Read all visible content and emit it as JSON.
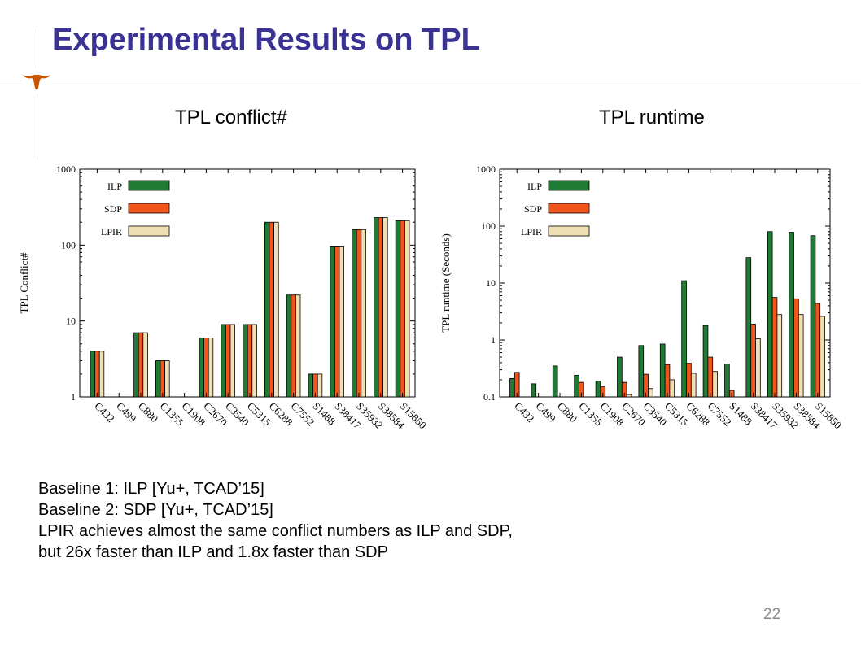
{
  "slide": {
    "title": "Experimental Results on TPL",
    "page_number": "22",
    "subtitles": [
      "TPL conflict#",
      "TPL runtime"
    ],
    "notes": [
      "Baseline 1: ILP [Yu+, TCAD’15]",
      "Baseline 2: SDP [Yu+, TCAD’15]",
      "LPIR achieves almost the same conflict numbers as ILP and SDP,",
      "but 26x faster than ILP and 1.8x faster than SDP"
    ],
    "colors": {
      "title": "#3b3394",
      "logo": "#cc5500"
    }
  },
  "chart_data": [
    {
      "type": "bar",
      "title": "",
      "xlabel": "",
      "ylabel": "TPL Conflict#",
      "yscale": "log",
      "ylim": [
        1,
        1000
      ],
      "yticks": [
        "1",
        "10",
        "100",
        "1000"
      ],
      "legend_position": "top-left",
      "categories": [
        "C432",
        "C499",
        "C880",
        "C1355",
        "C1908",
        "C2670",
        "C3540",
        "C5315",
        "C6288",
        "C7552",
        "S1488",
        "S38417",
        "S35932",
        "S38584",
        "S15850"
      ],
      "series": [
        {
          "name": "ILP",
          "color": "#1f7a33",
          "values": [
            4,
            0,
            7,
            3,
            0,
            6,
            9,
            9,
            200,
            22,
            2,
            95,
            160,
            230,
            210
          ]
        },
        {
          "name": "SDP",
          "color": "#f0561c",
          "values": [
            4,
            0,
            7,
            3,
            0,
            6,
            9,
            9,
            200,
            22,
            2,
            95,
            160,
            230,
            210
          ]
        },
        {
          "name": "LPIR",
          "color": "#f0deb4",
          "values": [
            4,
            0,
            7,
            3,
            0,
            6,
            9,
            9,
            200,
            22,
            2,
            95,
            160,
            230,
            210
          ]
        }
      ]
    },
    {
      "type": "bar",
      "title": "",
      "xlabel": "",
      "ylabel": "TPL runtime (Seconds)",
      "yscale": "log",
      "ylim": [
        0.1,
        1000
      ],
      "yticks": [
        "0.1",
        "1",
        "10",
        "100",
        "1000"
      ],
      "legend_position": "top-left",
      "categories": [
        "C432",
        "C499",
        "C880",
        "C1355",
        "C1908",
        "C2670",
        "C3540",
        "C5315",
        "C6288",
        "C7552",
        "S1488",
        "S38417",
        "S35932",
        "S38584",
        "S15850"
      ],
      "series": [
        {
          "name": "ILP",
          "color": "#1f7a33",
          "values": [
            0.21,
            0.17,
            0.35,
            0.24,
            0.19,
            0.5,
            0.8,
            0.85,
            11,
            1.8,
            0.38,
            28,
            80,
            78,
            68
          ]
        },
        {
          "name": "SDP",
          "color": "#f0561c",
          "values": [
            0.27,
            0,
            0,
            0.18,
            0.15,
            0.18,
            0.25,
            0.37,
            0.39,
            0.5,
            0.13,
            1.9,
            5.6,
            5.3,
            4.4
          ]
        },
        {
          "name": "LPIR",
          "color": "#f0deb4",
          "values": [
            0,
            0,
            0,
            0,
            0,
            0.11,
            0.14,
            0.2,
            0.26,
            0.28,
            0,
            1.05,
            2.8,
            2.8,
            2.6
          ]
        }
      ]
    }
  ]
}
